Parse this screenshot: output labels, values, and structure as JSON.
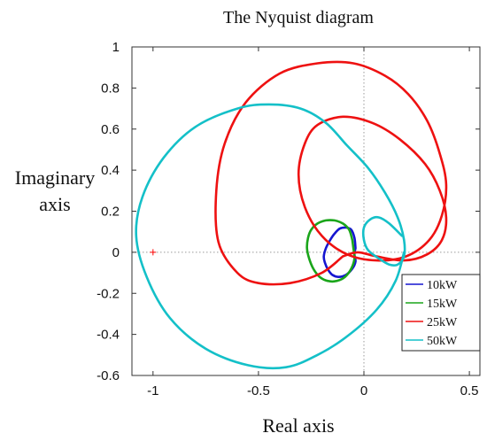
{
  "chart_data": {
    "type": "line",
    "title": "The Nyquist diagram",
    "xlabel": "Real axis",
    "ylabel_lines": [
      "Imaginary",
      "axis"
    ],
    "xlim": [
      -1.1,
      0.55
    ],
    "ylim": [
      -0.6,
      1.0
    ],
    "xticks": [
      -1,
      -0.5,
      0,
      0.5
    ],
    "xtick_labels": [
      "-1",
      "-0.5",
      "0",
      "0.5"
    ],
    "yticks": [
      -0.6,
      -0.4,
      -0.2,
      0,
      0.2,
      0.4,
      0.6,
      0.8,
      1
    ],
    "ytick_labels": [
      "-0.6",
      "-0.4",
      "-0.2",
      "0",
      "0.2",
      "0.4",
      "0.6",
      "0.8",
      "1"
    ],
    "grid": "dotted zero lines",
    "legend_position": "bottom-right",
    "critical_point": {
      "x": -1,
      "y": 0,
      "color": "#ff0000"
    },
    "series": [
      {
        "name": "10kW",
        "color": "#1515d0",
        "x": [
          -0.04,
          -0.045,
          -0.06,
          -0.085,
          -0.115,
          -0.14,
          -0.16,
          -0.18,
          -0.19,
          -0.185,
          -0.17,
          -0.15,
          -0.12,
          -0.085,
          -0.055,
          -0.04,
          -0.045,
          -0.04
        ],
        "y": [
          0.02,
          0.07,
          0.11,
          0.12,
          0.115,
          0.09,
          0.06,
          0.02,
          -0.02,
          -0.05,
          -0.085,
          -0.11,
          -0.12,
          -0.11,
          -0.08,
          -0.045,
          -0.01,
          0.02
        ]
      },
      {
        "name": "15kW",
        "color": "#1aa51a",
        "x": [
          -0.055,
          -0.07,
          -0.1,
          -0.14,
          -0.18,
          -0.22,
          -0.25,
          -0.265,
          -0.27,
          -0.26,
          -0.24,
          -0.21,
          -0.17,
          -0.13,
          -0.09,
          -0.06,
          -0.045,
          -0.05,
          -0.055
        ],
        "y": [
          0.06,
          0.11,
          0.14,
          0.155,
          0.155,
          0.14,
          0.11,
          0.07,
          0.02,
          -0.03,
          -0.08,
          -0.12,
          -0.14,
          -0.14,
          -0.12,
          -0.08,
          -0.03,
          0.02,
          0.06
        ]
      },
      {
        "name": "25kW",
        "color": "#ee1111",
        "x": [
          -0.1,
          -0.2,
          -0.35,
          -0.5,
          -0.6,
          -0.69,
          -0.7,
          -0.66,
          -0.56,
          -0.4,
          -0.22,
          -0.05,
          0.1,
          0.21,
          0.3,
          0.36,
          0.39,
          0.37,
          0.31,
          0.2,
          0.06,
          -0.08,
          -0.2,
          -0.28,
          -0.31,
          -0.28,
          -0.22,
          -0.1,
          0.04,
          0.17,
          0.29,
          0.36,
          0.39,
          0.37,
          0.3,
          0.19,
          0.06,
          -0.03,
          -0.1
        ],
        "y": [
          -0.02,
          -0.1,
          -0.15,
          -0.15,
          -0.1,
          0.05,
          0.3,
          0.53,
          0.73,
          0.87,
          0.92,
          0.92,
          0.86,
          0.77,
          0.64,
          0.48,
          0.33,
          0.18,
          0.06,
          -0.02,
          -0.04,
          -0.01,
          0.08,
          0.22,
          0.38,
          0.53,
          0.62,
          0.66,
          0.63,
          0.55,
          0.43,
          0.3,
          0.17,
          0.06,
          -0.01,
          -0.04,
          -0.02,
          0.0,
          -0.02
        ]
      },
      {
        "name": "50kW",
        "color": "#14c0c8",
        "x": [
          0.19,
          0.15,
          0.06,
          -0.08,
          -0.22,
          -0.37,
          -0.55,
          -0.75,
          -0.92,
          -1.03,
          -1.08,
          -1.05,
          -0.95,
          -0.8,
          -0.6,
          -0.45,
          -0.3,
          -0.18,
          -0.08,
          0.02,
          0.1,
          0.16,
          0.19,
          0.19,
          0.16,
          0.12,
          0.07,
          0.02,
          0.0,
          0.0,
          0.03,
          0.07,
          0.12,
          0.18
        ],
        "y": [
          0.0,
          -0.14,
          -0.28,
          -0.41,
          -0.5,
          -0.56,
          -0.55,
          -0.47,
          -0.32,
          -0.12,
          0.08,
          0.27,
          0.46,
          0.61,
          0.7,
          0.72,
          0.7,
          0.63,
          0.52,
          0.41,
          0.29,
          0.17,
          0.06,
          -0.02,
          -0.06,
          -0.06,
          -0.03,
          0.01,
          0.06,
          0.12,
          0.16,
          0.17,
          0.14,
          0.08
        ]
      }
    ]
  }
}
